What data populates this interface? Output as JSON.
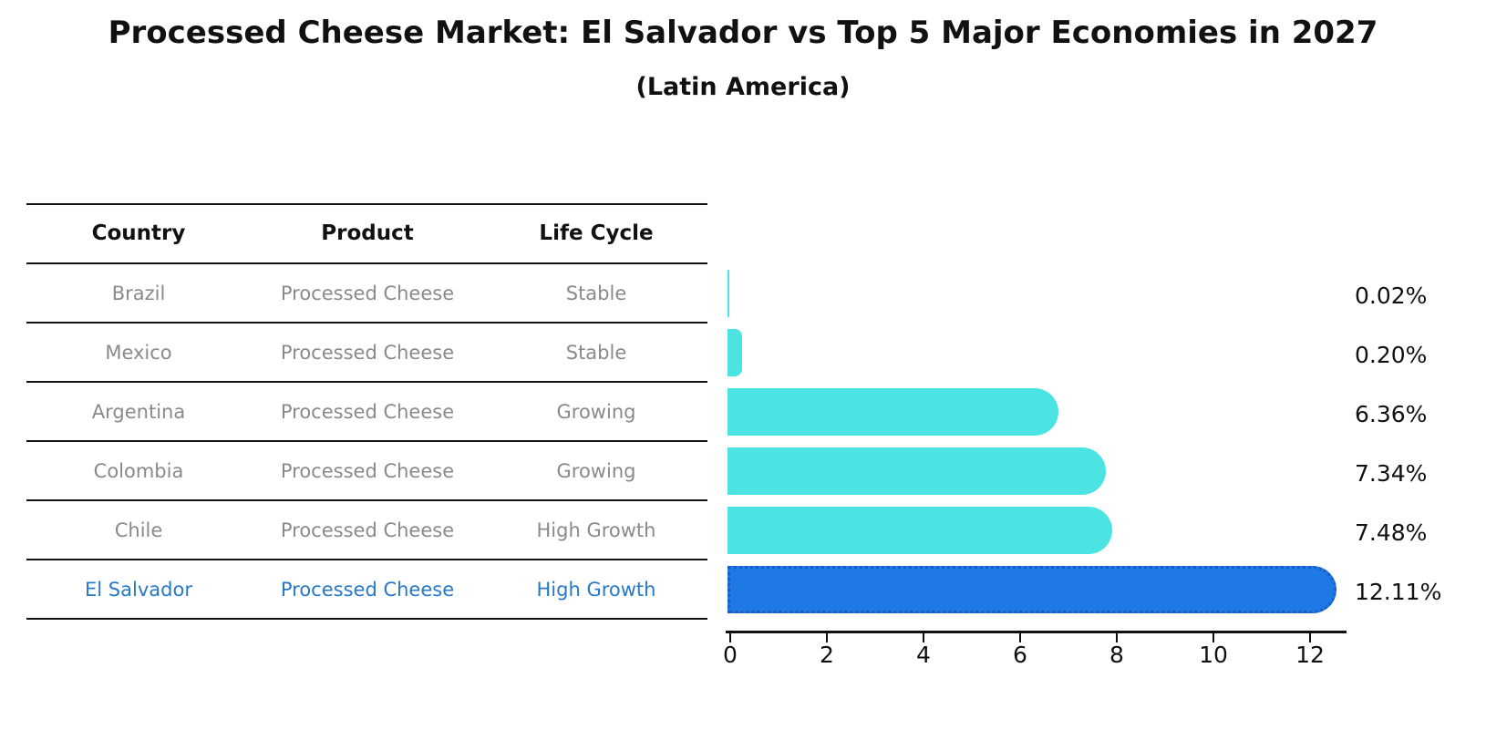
{
  "header": {
    "title": "Processed Cheese Market: El Salvador vs Top 5 Major Economies in 2027",
    "subtitle": "(Latin America)"
  },
  "table": {
    "headers": [
      "Country",
      "Product",
      "Life Cycle"
    ],
    "rows": [
      {
        "country": "Brazil",
        "product": "Processed Cheese",
        "life_cycle": "Stable",
        "highlight": false
      },
      {
        "country": "Mexico",
        "product": "Processed Cheese",
        "life_cycle": "Stable",
        "highlight": false
      },
      {
        "country": "Argentina",
        "product": "Processed Cheese",
        "life_cycle": "Growing",
        "highlight": false
      },
      {
        "country": "Colombia",
        "product": "Processed Cheese",
        "life_cycle": "Growing",
        "highlight": false
      },
      {
        "country": "Chile",
        "product": "Processed Cheese",
        "life_cycle": "High Growth",
        "highlight": false
      },
      {
        "country": "El Salvador",
        "product": "Processed Cheese",
        "life_cycle": "High Growth",
        "highlight": true
      }
    ]
  },
  "chart_data": {
    "type": "bar",
    "orientation": "horizontal",
    "title": "Processed Cheese Market: El Salvador vs Top 5 Major Economies in 2027",
    "subtitle": "(Latin America)",
    "categories": [
      "Brazil",
      "Mexico",
      "Argentina",
      "Colombia",
      "Chile",
      "El Salvador"
    ],
    "values": [
      0.02,
      0.2,
      6.36,
      7.34,
      7.48,
      12.11
    ],
    "value_labels": [
      "0.02%",
      "0.20%",
      "6.36%",
      "7.34%",
      "7.48%",
      "12.11%"
    ],
    "highlight_index": 5,
    "x_ticks": [
      "0",
      "2",
      "4",
      "6",
      "8",
      "10",
      "12"
    ],
    "x_tick_values": [
      0,
      2,
      4,
      6,
      8,
      10,
      12
    ],
    "xlim": [
      0,
      12.8
    ],
    "grid": false,
    "legend": false,
    "bar_color": "#4be4e2",
    "highlight_bar_color": "#1e78e6",
    "highlight_bar_edge_color": "#1a5dc0",
    "highlight_text_color": "#2878c8",
    "row_text_color": "#8a8a8a"
  }
}
